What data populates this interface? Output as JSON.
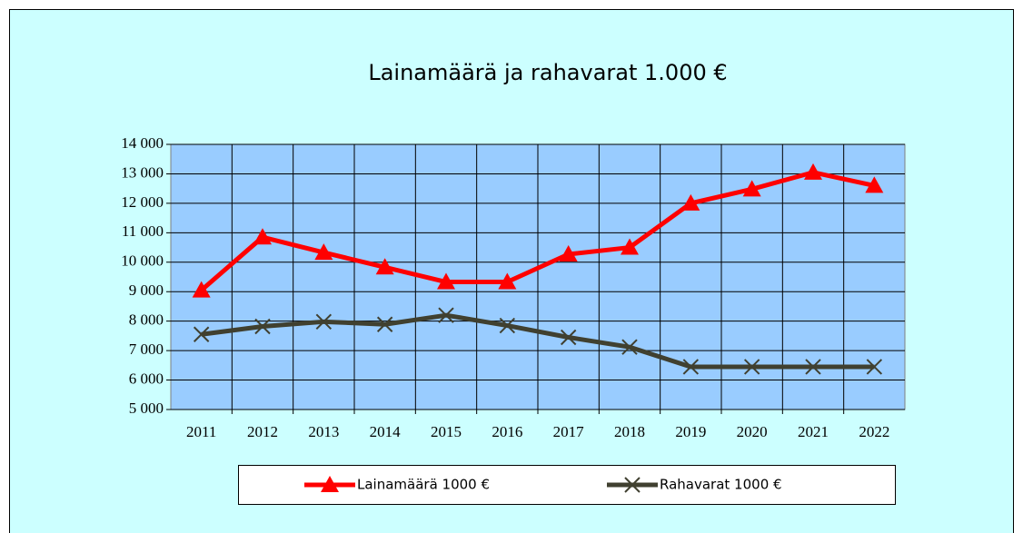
{
  "chart_data": {
    "type": "line",
    "title": "Lainamäärä ja rahavarat 1.000 €",
    "categories": [
      "2011",
      "2012",
      "2013",
      "2014",
      "2015",
      "2016",
      "2017",
      "2018",
      "2019",
      "2020",
      "2021",
      "2022"
    ],
    "series": [
      {
        "name": "Lainamäärä 1000 €",
        "color": "#ff0000",
        "marker": "triangle",
        "values": [
          9050,
          10850,
          10330,
          9830,
          9330,
          9330,
          10270,
          10500,
          12000,
          12480,
          13050,
          12600
        ]
      },
      {
        "name": "Rahavarat 1000 €",
        "color": "#404030",
        "marker": "x",
        "values": [
          7550,
          7820,
          7980,
          7890,
          8200,
          7850,
          7450,
          7120,
          6450,
          6450,
          6450,
          6450
        ]
      }
    ],
    "ylim": [
      5000,
      14000
    ],
    "yticks": [
      {
        "value": 5000,
        "label": "5 000"
      },
      {
        "value": 6000,
        "label": "6 000"
      },
      {
        "value": 7000,
        "label": "7 000"
      },
      {
        "value": 8000,
        "label": "8 000"
      },
      {
        "value": 9000,
        "label": "9 000"
      },
      {
        "value": 10000,
        "label": "10 000"
      },
      {
        "value": 11000,
        "label": "11 000"
      },
      {
        "value": 12000,
        "label": "12 000"
      },
      {
        "value": 13000,
        "label": "13 000"
      },
      {
        "value": 14000,
        "label": "14 000"
      }
    ],
    "grid": true,
    "legend": "bottom"
  }
}
